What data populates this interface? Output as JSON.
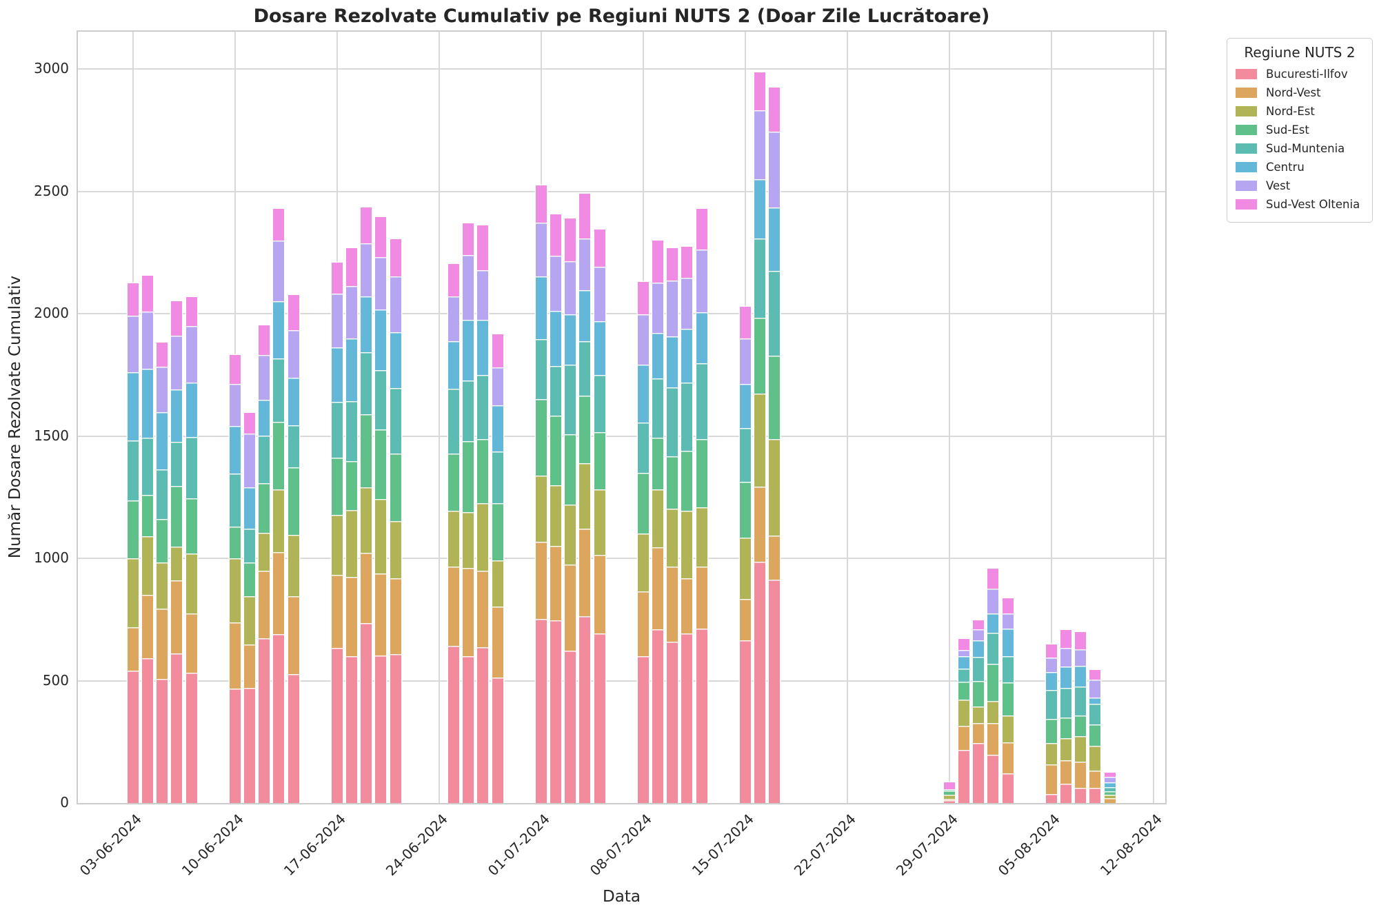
{
  "title": "Dosare Rezolvate Cumulativ pe Regiuni NUTS 2 (Doar Zile Lucrătoare)",
  "legend": {
    "title": "Regiune NUTS 2"
  },
  "axes": {
    "yticks": [
      0,
      500,
      1000,
      1500,
      2000,
      2500,
      3000
    ],
    "xticks": [
      {
        "label": "03-06-2024",
        "day_offset": 0
      },
      {
        "label": "10-06-2024",
        "day_offset": 7
      },
      {
        "label": "17-06-2024",
        "day_offset": 14
      },
      {
        "label": "24-06-2024",
        "day_offset": 21
      },
      {
        "label": "01-07-2024",
        "day_offset": 28
      },
      {
        "label": "08-07-2024",
        "day_offset": 35
      },
      {
        "label": "15-07-2024",
        "day_offset": 42
      },
      {
        "label": "22-07-2024",
        "day_offset": 49
      },
      {
        "label": "29-07-2024",
        "day_offset": 56
      },
      {
        "label": "05-08-2024",
        "day_offset": 63
      },
      {
        "label": "12-08-2024",
        "day_offset": 70
      }
    ]
  },
  "chart_data": {
    "type": "bar",
    "stacked": true,
    "title": "Dosare Rezolvate Cumulativ pe Regiuni NUTS 2 (Doar Zile Lucrătoare)",
    "xlabel": "Data",
    "ylabel": "Număr Dosare Rezolvate Cumulativ",
    "ylim": [
      0,
      3150
    ],
    "grid": true,
    "legend_position": "outside-upper-right",
    "x": [
      "03-06-2024",
      "04-06-2024",
      "05-06-2024",
      "06-06-2024",
      "07-06-2024",
      "10-06-2024",
      "11-06-2024",
      "12-06-2024",
      "13-06-2024",
      "14-06-2024",
      "17-06-2024",
      "18-06-2024",
      "19-06-2024",
      "20-06-2024",
      "21-06-2024",
      "25-06-2024",
      "26-06-2024",
      "27-06-2024",
      "28-06-2024",
      "01-07-2024",
      "02-07-2024",
      "03-07-2024",
      "04-07-2024",
      "05-07-2024",
      "08-07-2024",
      "09-07-2024",
      "10-07-2024",
      "11-07-2024",
      "12-07-2024",
      "15-07-2024",
      "16-07-2024",
      "17-07-2024",
      "29-07-2024",
      "30-07-2024",
      "31-07-2024",
      "01-08-2024",
      "02-08-2024",
      "05-08-2024",
      "06-08-2024",
      "07-08-2024",
      "08-08-2024",
      "09-08-2024"
    ],
    "day_offsets": [
      0,
      1,
      2,
      3,
      4,
      7,
      8,
      9,
      10,
      11,
      14,
      15,
      16,
      17,
      18,
      22,
      23,
      24,
      25,
      28,
      29,
      30,
      31,
      32,
      35,
      36,
      37,
      38,
      39,
      42,
      43,
      44,
      56,
      57,
      58,
      59,
      60,
      63,
      64,
      65,
      66,
      67
    ],
    "series": [
      {
        "name": "Bucuresti-Ilfov",
        "color": "#f28b9b",
        "values": [
          541,
          593,
          508,
          610,
          533,
          468,
          471,
          674,
          690,
          528,
          633,
          601,
          734,
          604,
          609,
          643,
          599,
          638,
          512,
          753,
          746,
          622,
          763,
          692,
          599,
          709,
          660,
          692,
          714,
          664,
          986,
          913,
          10,
          218,
          244,
          197,
          122,
          38,
          78,
          63,
          61,
          0
        ]
      },
      {
        "name": "Nord-Vest",
        "color": "#dca65f",
        "values": [
          177,
          259,
          287,
          300,
          241,
          271,
          178,
          276,
          336,
          316,
          300,
          324,
          289,
          334,
          308,
          324,
          363,
          311,
          290,
          316,
          306,
          352,
          358,
          323,
          265,
          335,
          306,
          226,
          252,
          171,
          307,
          180,
          6,
          97,
          82,
          129,
          127,
          119,
          98,
          106,
          71,
          21
        ]
      },
      {
        "name": "Nord-Est",
        "color": "#b0b356",
        "values": [
          282,
          238,
          189,
          139,
          246,
          261,
          195,
          154,
          256,
          252,
          244,
          271,
          268,
          304,
          236,
          228,
          226,
          275,
          190,
          270,
          246,
          247,
          267,
          266,
          237,
          237,
          238,
          277,
          242,
          250,
          381,
          393,
          18,
          108,
          69,
          92,
          110,
          87,
          89,
          104,
          103,
          12
        ]
      },
      {
        "name": "Sud-Est",
        "color": "#60c08a",
        "values": [
          238,
          169,
          177,
          246,
          226,
          131,
          138,
          203,
          276,
          276,
          235,
          200,
          297,
          284,
          276,
          234,
          290,
          262,
          232,
          311,
          286,
          286,
          278,
          234,
          249,
          213,
          213,
          245,
          278,
          229,
          309,
          343,
          16,
          72,
          105,
          152,
          134,
          99,
          85,
          86,
          85,
          16
        ]
      },
      {
        "name": "Sud-Muntenia",
        "color": "#5cbcb2",
        "values": [
          245,
          233,
          203,
          180,
          249,
          216,
          138,
          195,
          260,
          173,
          227,
          247,
          255,
          243,
          267,
          265,
          250,
          262,
          213,
          245,
          202,
          285,
          221,
          233,
          206,
          242,
          282,
          278,
          311,
          218,
          324,
          346,
          5,
          55,
          97,
          126,
          107,
          120,
          120,
          118,
          87,
          17
        ]
      },
      {
        "name": "Centru",
        "color": "#63b7d9",
        "values": [
          279,
          283,
          234,
          214,
          223,
          195,
          171,
          146,
          232,
          192,
          223,
          256,
          227,
          247,
          228,
          193,
          246,
          226,
          188,
          257,
          224,
          205,
          208,
          221,
          236,
          184,
          208,
          221,
          208,
          180,
          241,
          258,
          0,
          51,
          67,
          79,
          114,
          73,
          89,
          84,
          25,
          19
        ]
      },
      {
        "name": "Vest",
        "color": "#b6a6f2",
        "values": [
          230,
          233,
          186,
          221,
          230,
          171,
          219,
          183,
          250,
          195,
          219,
          214,
          216,
          216,
          227,
          183,
          265,
          204,
          156,
          221,
          226,
          217,
          213,
          224,
          206,
          208,
          229,
          207,
          258,
          186,
          284,
          310,
          0,
          24,
          46,
          101,
          61,
          58,
          75,
          66,
          71,
          23
        ]
      },
      {
        "name": "Sud-Vest Oltenia",
        "color": "#f18ae2",
        "values": [
          131,
          148,
          98,
          142,
          121,
          118,
          84,
          120,
          127,
          143,
          127,
          156,
          149,
          162,
          154,
          133,
          131,
          184,
          134,
          152,
          170,
          176,
          181,
          152,
          131,
          172,
          132,
          126,
          164,
          131,
          154,
          182,
          30,
          45,
          37,
          83,
          61,
          54,
          73,
          71,
          40,
          16
        ]
      }
    ]
  }
}
